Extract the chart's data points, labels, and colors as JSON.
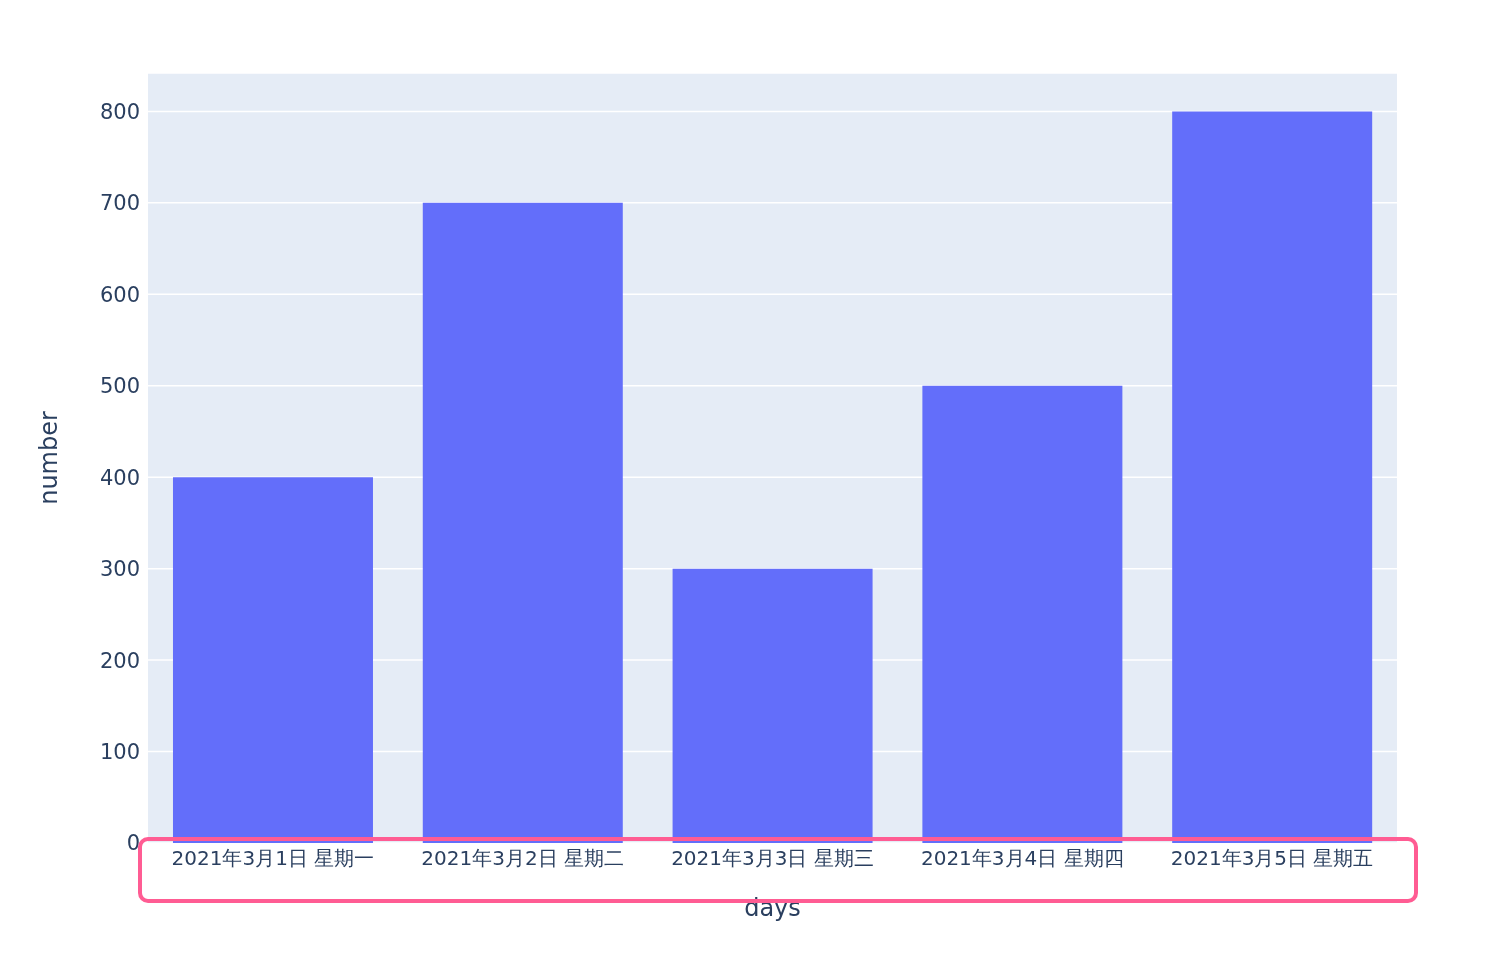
{
  "chart_data": {
    "type": "bar",
    "xlabel": "days",
    "ylabel": "number",
    "categories": [
      "2021年3月1日 星期一",
      "2021年3月2日 星期二",
      "2021年3月3日 星期三",
      "2021年3月4日 星期四",
      "2021年3月5日 星期五"
    ],
    "values": [
      400,
      700,
      300,
      500,
      800
    ],
    "color": "#636efa",
    "ylim": [
      0,
      842
    ],
    "yticks": [
      0,
      100,
      200,
      300,
      400,
      500,
      600,
      700,
      800
    ],
    "grid": "y"
  }
}
